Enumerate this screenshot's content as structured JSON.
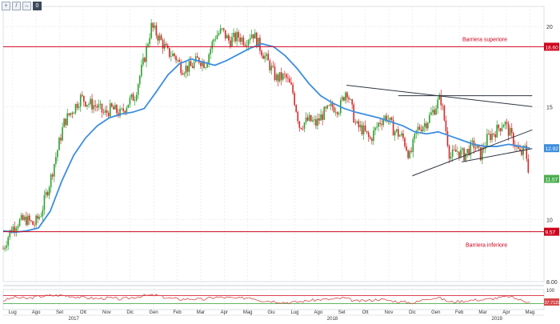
{
  "toolbar": {
    "icons": [
      "zoom-icon",
      "pencil-icon",
      "arrows-icon",
      "zero-button-icon"
    ],
    "zero_label": "0"
  },
  "chart_data": {
    "type": "line",
    "title": "",
    "xlabel": "",
    "ylabel": "",
    "y_scale": "log",
    "ylim": [
      8.0,
      21.5
    ],
    "y_ticks": [
      "20",
      "15",
      "10",
      "8.00"
    ],
    "x_tick_labels": [
      "Lug",
      "Ago",
      "Set",
      "Ott",
      "Nov",
      "Dic",
      "Gen",
      "Feb",
      "Mar",
      "Apr",
      "Mag",
      "Giu",
      "Lug",
      "Ago",
      "Set",
      "Ott",
      "Nov",
      "Dic",
      "Gen",
      "Feb",
      "Mar",
      "Apr",
      "Mag"
    ],
    "x_years": [
      {
        "label": "2017",
        "month_index": 3
      },
      {
        "label": "2018",
        "month_index": 14
      },
      {
        "label": "2019",
        "month_index": 21
      }
    ],
    "grid": true,
    "annotations": {
      "upper_barrier": {
        "label": "Barriera superiore",
        "value": 18.6,
        "badge": "18.60"
      },
      "lower_barrier": {
        "label": "Barriera inferiore",
        "value": 9.57,
        "badge": "9.57"
      },
      "last_price": {
        "value": 11.57,
        "badge": "11.57"
      },
      "ma_last": {
        "value": 12.92,
        "badge": "12.92"
      }
    },
    "price_series": [
      {
        "month": 0.0,
        "value": 9.0
      },
      {
        "month": 0.3,
        "value": 9.6
      },
      {
        "month": 0.6,
        "value": 9.9
      },
      {
        "month": 1.0,
        "value": 10.0
      },
      {
        "month": 1.3,
        "value": 9.8
      },
      {
        "month": 1.6,
        "value": 10.2
      },
      {
        "month": 2.0,
        "value": 11.5
      },
      {
        "month": 2.3,
        "value": 12.8
      },
      {
        "month": 2.6,
        "value": 14.2
      },
      {
        "month": 3.0,
        "value": 14.9
      },
      {
        "month": 3.3,
        "value": 15.5
      },
      {
        "month": 3.6,
        "value": 15.2
      },
      {
        "month": 4.0,
        "value": 15.0
      },
      {
        "month": 4.3,
        "value": 14.6
      },
      {
        "month": 4.6,
        "value": 14.9
      },
      {
        "month": 5.0,
        "value": 14.6
      },
      {
        "month": 5.3,
        "value": 15.2
      },
      {
        "month": 5.6,
        "value": 15.6
      },
      {
        "month": 6.0,
        "value": 17.8
      },
      {
        "month": 6.3,
        "value": 20.0
      },
      {
        "month": 6.6,
        "value": 19.3
      },
      {
        "month": 7.0,
        "value": 18.2
      },
      {
        "month": 7.3,
        "value": 18.0
      },
      {
        "month": 7.6,
        "value": 17.2
      },
      {
        "month": 8.0,
        "value": 17.3
      },
      {
        "month": 8.3,
        "value": 17.8
      },
      {
        "month": 8.6,
        "value": 17.5
      },
      {
        "month": 9.0,
        "value": 19.3
      },
      {
        "month": 9.3,
        "value": 19.7
      },
      {
        "month": 9.6,
        "value": 19.0
      },
      {
        "month": 10.0,
        "value": 19.3
      },
      {
        "month": 10.3,
        "value": 19.0
      },
      {
        "month": 10.6,
        "value": 19.6
      },
      {
        "month": 11.0,
        "value": 18.3
      },
      {
        "month": 11.3,
        "value": 17.5
      },
      {
        "month": 11.6,
        "value": 16.6
      },
      {
        "month": 12.0,
        "value": 16.7
      },
      {
        "month": 12.3,
        "value": 15.9
      },
      {
        "month": 12.6,
        "value": 14.0
      },
      {
        "month": 13.0,
        "value": 14.3
      },
      {
        "month": 13.3,
        "value": 14.1
      },
      {
        "month": 13.6,
        "value": 14.6
      },
      {
        "month": 14.0,
        "value": 15.0
      },
      {
        "month": 14.3,
        "value": 14.9
      },
      {
        "month": 14.6,
        "value": 16.0
      },
      {
        "month": 15.0,
        "value": 14.0
      },
      {
        "month": 15.3,
        "value": 13.8
      },
      {
        "month": 15.6,
        "value": 13.3
      },
      {
        "month": 16.0,
        "value": 14.2
      },
      {
        "month": 16.3,
        "value": 14.5
      },
      {
        "month": 16.6,
        "value": 13.8
      },
      {
        "month": 17.0,
        "value": 13.4
      },
      {
        "month": 17.3,
        "value": 12.5
      },
      {
        "month": 17.6,
        "value": 13.8
      },
      {
        "month": 18.0,
        "value": 14.2
      },
      {
        "month": 18.3,
        "value": 14.8
      },
      {
        "month": 18.6,
        "value": 15.5
      },
      {
        "month": 19.0,
        "value": 12.5
      },
      {
        "month": 19.3,
        "value": 12.8
      },
      {
        "month": 19.6,
        "value": 12.6
      },
      {
        "month": 20.0,
        "value": 13.1
      },
      {
        "month": 20.3,
        "value": 12.6
      },
      {
        "month": 20.6,
        "value": 13.4
      },
      {
        "month": 21.0,
        "value": 13.8
      },
      {
        "month": 21.3,
        "value": 14.2
      },
      {
        "month": 21.6,
        "value": 13.5
      },
      {
        "month": 22.0,
        "value": 12.6
      },
      {
        "month": 22.2,
        "value": 12.9
      },
      {
        "month": 22.4,
        "value": 11.57
      }
    ],
    "ma_series": [
      {
        "month": 0.0,
        "value": 9.6
      },
      {
        "month": 0.5,
        "value": 9.55
      },
      {
        "month": 1.0,
        "value": 9.6
      },
      {
        "month": 1.5,
        "value": 9.7
      },
      {
        "month": 2.0,
        "value": 10.3
      },
      {
        "month": 2.5,
        "value": 11.5
      },
      {
        "month": 3.0,
        "value": 12.6
      },
      {
        "month": 3.5,
        "value": 13.4
      },
      {
        "month": 4.0,
        "value": 14.0
      },
      {
        "month": 4.5,
        "value": 14.4
      },
      {
        "month": 5.0,
        "value": 14.6
      },
      {
        "month": 5.5,
        "value": 14.7
      },
      {
        "month": 6.0,
        "value": 14.9
      },
      {
        "month": 6.5,
        "value": 15.8
      },
      {
        "month": 7.0,
        "value": 16.8
      },
      {
        "month": 7.5,
        "value": 17.5
      },
      {
        "month": 8.0,
        "value": 17.8
      },
      {
        "month": 8.5,
        "value": 17.6
      },
      {
        "month": 9.0,
        "value": 17.4
      },
      {
        "month": 9.5,
        "value": 17.7
      },
      {
        "month": 10.0,
        "value": 18.1
      },
      {
        "month": 10.5,
        "value": 18.5
      },
      {
        "month": 11.0,
        "value": 18.8
      },
      {
        "month": 11.5,
        "value": 18.6
      },
      {
        "month": 12.0,
        "value": 18.0
      },
      {
        "month": 12.5,
        "value": 17.2
      },
      {
        "month": 13.0,
        "value": 16.3
      },
      {
        "month": 13.5,
        "value": 15.6
      },
      {
        "month": 14.0,
        "value": 15.2
      },
      {
        "month": 14.5,
        "value": 14.9
      },
      {
        "month": 15.0,
        "value": 14.7
      },
      {
        "month": 15.5,
        "value": 14.55
      },
      {
        "month": 16.0,
        "value": 14.4
      },
      {
        "month": 16.5,
        "value": 14.2
      },
      {
        "month": 17.0,
        "value": 14.0
      },
      {
        "month": 17.5,
        "value": 13.7
      },
      {
        "month": 18.0,
        "value": 13.6
      },
      {
        "month": 18.5,
        "value": 13.7
      },
      {
        "month": 19.0,
        "value": 13.5
      },
      {
        "month": 19.5,
        "value": 13.3
      },
      {
        "month": 20.0,
        "value": 13.1
      },
      {
        "month": 20.5,
        "value": 13.0
      },
      {
        "month": 21.0,
        "value": 13.0
      },
      {
        "month": 21.5,
        "value": 13.1
      },
      {
        "month": 22.0,
        "value": 13.0
      },
      {
        "month": 22.4,
        "value": 12.92
      }
    ],
    "trendlines": [
      {
        "from": {
          "month": 14.6,
          "value": 16.2
        },
        "to": {
          "month": 22.5,
          "value": 15.0
        }
      },
      {
        "from": {
          "month": 16.8,
          "value": 15.6
        },
        "to": {
          "month": 22.5,
          "value": 15.6
        }
      },
      {
        "from": {
          "month": 17.4,
          "value": 11.7
        },
        "to": {
          "month": 22.5,
          "value": 13.8
        }
      },
      {
        "from": {
          "month": 19.5,
          "value": 12.3
        },
        "to": {
          "month": 22.5,
          "value": 12.9
        }
      }
    ],
    "oscillator": {
      "ylim": [
        0,
        100
      ],
      "y_ticks": [
        "100",
        "50"
      ],
      "levels": [
        70,
        30
      ],
      "last_badge": "37.7129",
      "values": [
        {
          "month": 0.0,
          "value": 45
        },
        {
          "month": 0.5,
          "value": 62
        },
        {
          "month": 1.0,
          "value": 55
        },
        {
          "month": 1.5,
          "value": 66
        },
        {
          "month": 2.0,
          "value": 70
        },
        {
          "month": 2.5,
          "value": 72
        },
        {
          "month": 3.0,
          "value": 65
        },
        {
          "month": 3.5,
          "value": 60
        },
        {
          "month": 4.0,
          "value": 55
        },
        {
          "month": 4.5,
          "value": 58
        },
        {
          "month": 5.0,
          "value": 52
        },
        {
          "month": 5.5,
          "value": 60
        },
        {
          "month": 6.0,
          "value": 70
        },
        {
          "month": 6.5,
          "value": 72
        },
        {
          "month": 7.0,
          "value": 58
        },
        {
          "month": 7.5,
          "value": 52
        },
        {
          "month": 8.0,
          "value": 54
        },
        {
          "month": 8.5,
          "value": 50
        },
        {
          "month": 9.0,
          "value": 62
        },
        {
          "month": 9.5,
          "value": 60
        },
        {
          "month": 10.0,
          "value": 55
        },
        {
          "month": 10.5,
          "value": 62
        },
        {
          "month": 11.0,
          "value": 45
        },
        {
          "month": 11.5,
          "value": 42
        },
        {
          "month": 12.0,
          "value": 35
        },
        {
          "month": 12.5,
          "value": 38
        },
        {
          "month": 13.0,
          "value": 45
        },
        {
          "month": 13.5,
          "value": 50
        },
        {
          "month": 14.0,
          "value": 52
        },
        {
          "month": 14.5,
          "value": 58
        },
        {
          "month": 15.0,
          "value": 42
        },
        {
          "month": 15.5,
          "value": 45
        },
        {
          "month": 16.0,
          "value": 52
        },
        {
          "month": 16.5,
          "value": 44
        },
        {
          "month": 17.0,
          "value": 38
        },
        {
          "month": 17.5,
          "value": 34
        },
        {
          "month": 18.0,
          "value": 55
        },
        {
          "month": 18.5,
          "value": 60
        },
        {
          "month": 19.0,
          "value": 38
        },
        {
          "month": 19.5,
          "value": 42
        },
        {
          "month": 20.0,
          "value": 48
        },
        {
          "month": 20.5,
          "value": 50
        },
        {
          "month": 21.0,
          "value": 58
        },
        {
          "month": 21.5,
          "value": 66
        },
        {
          "month": 22.0,
          "value": 48
        },
        {
          "month": 22.4,
          "value": 38
        }
      ]
    }
  }
}
